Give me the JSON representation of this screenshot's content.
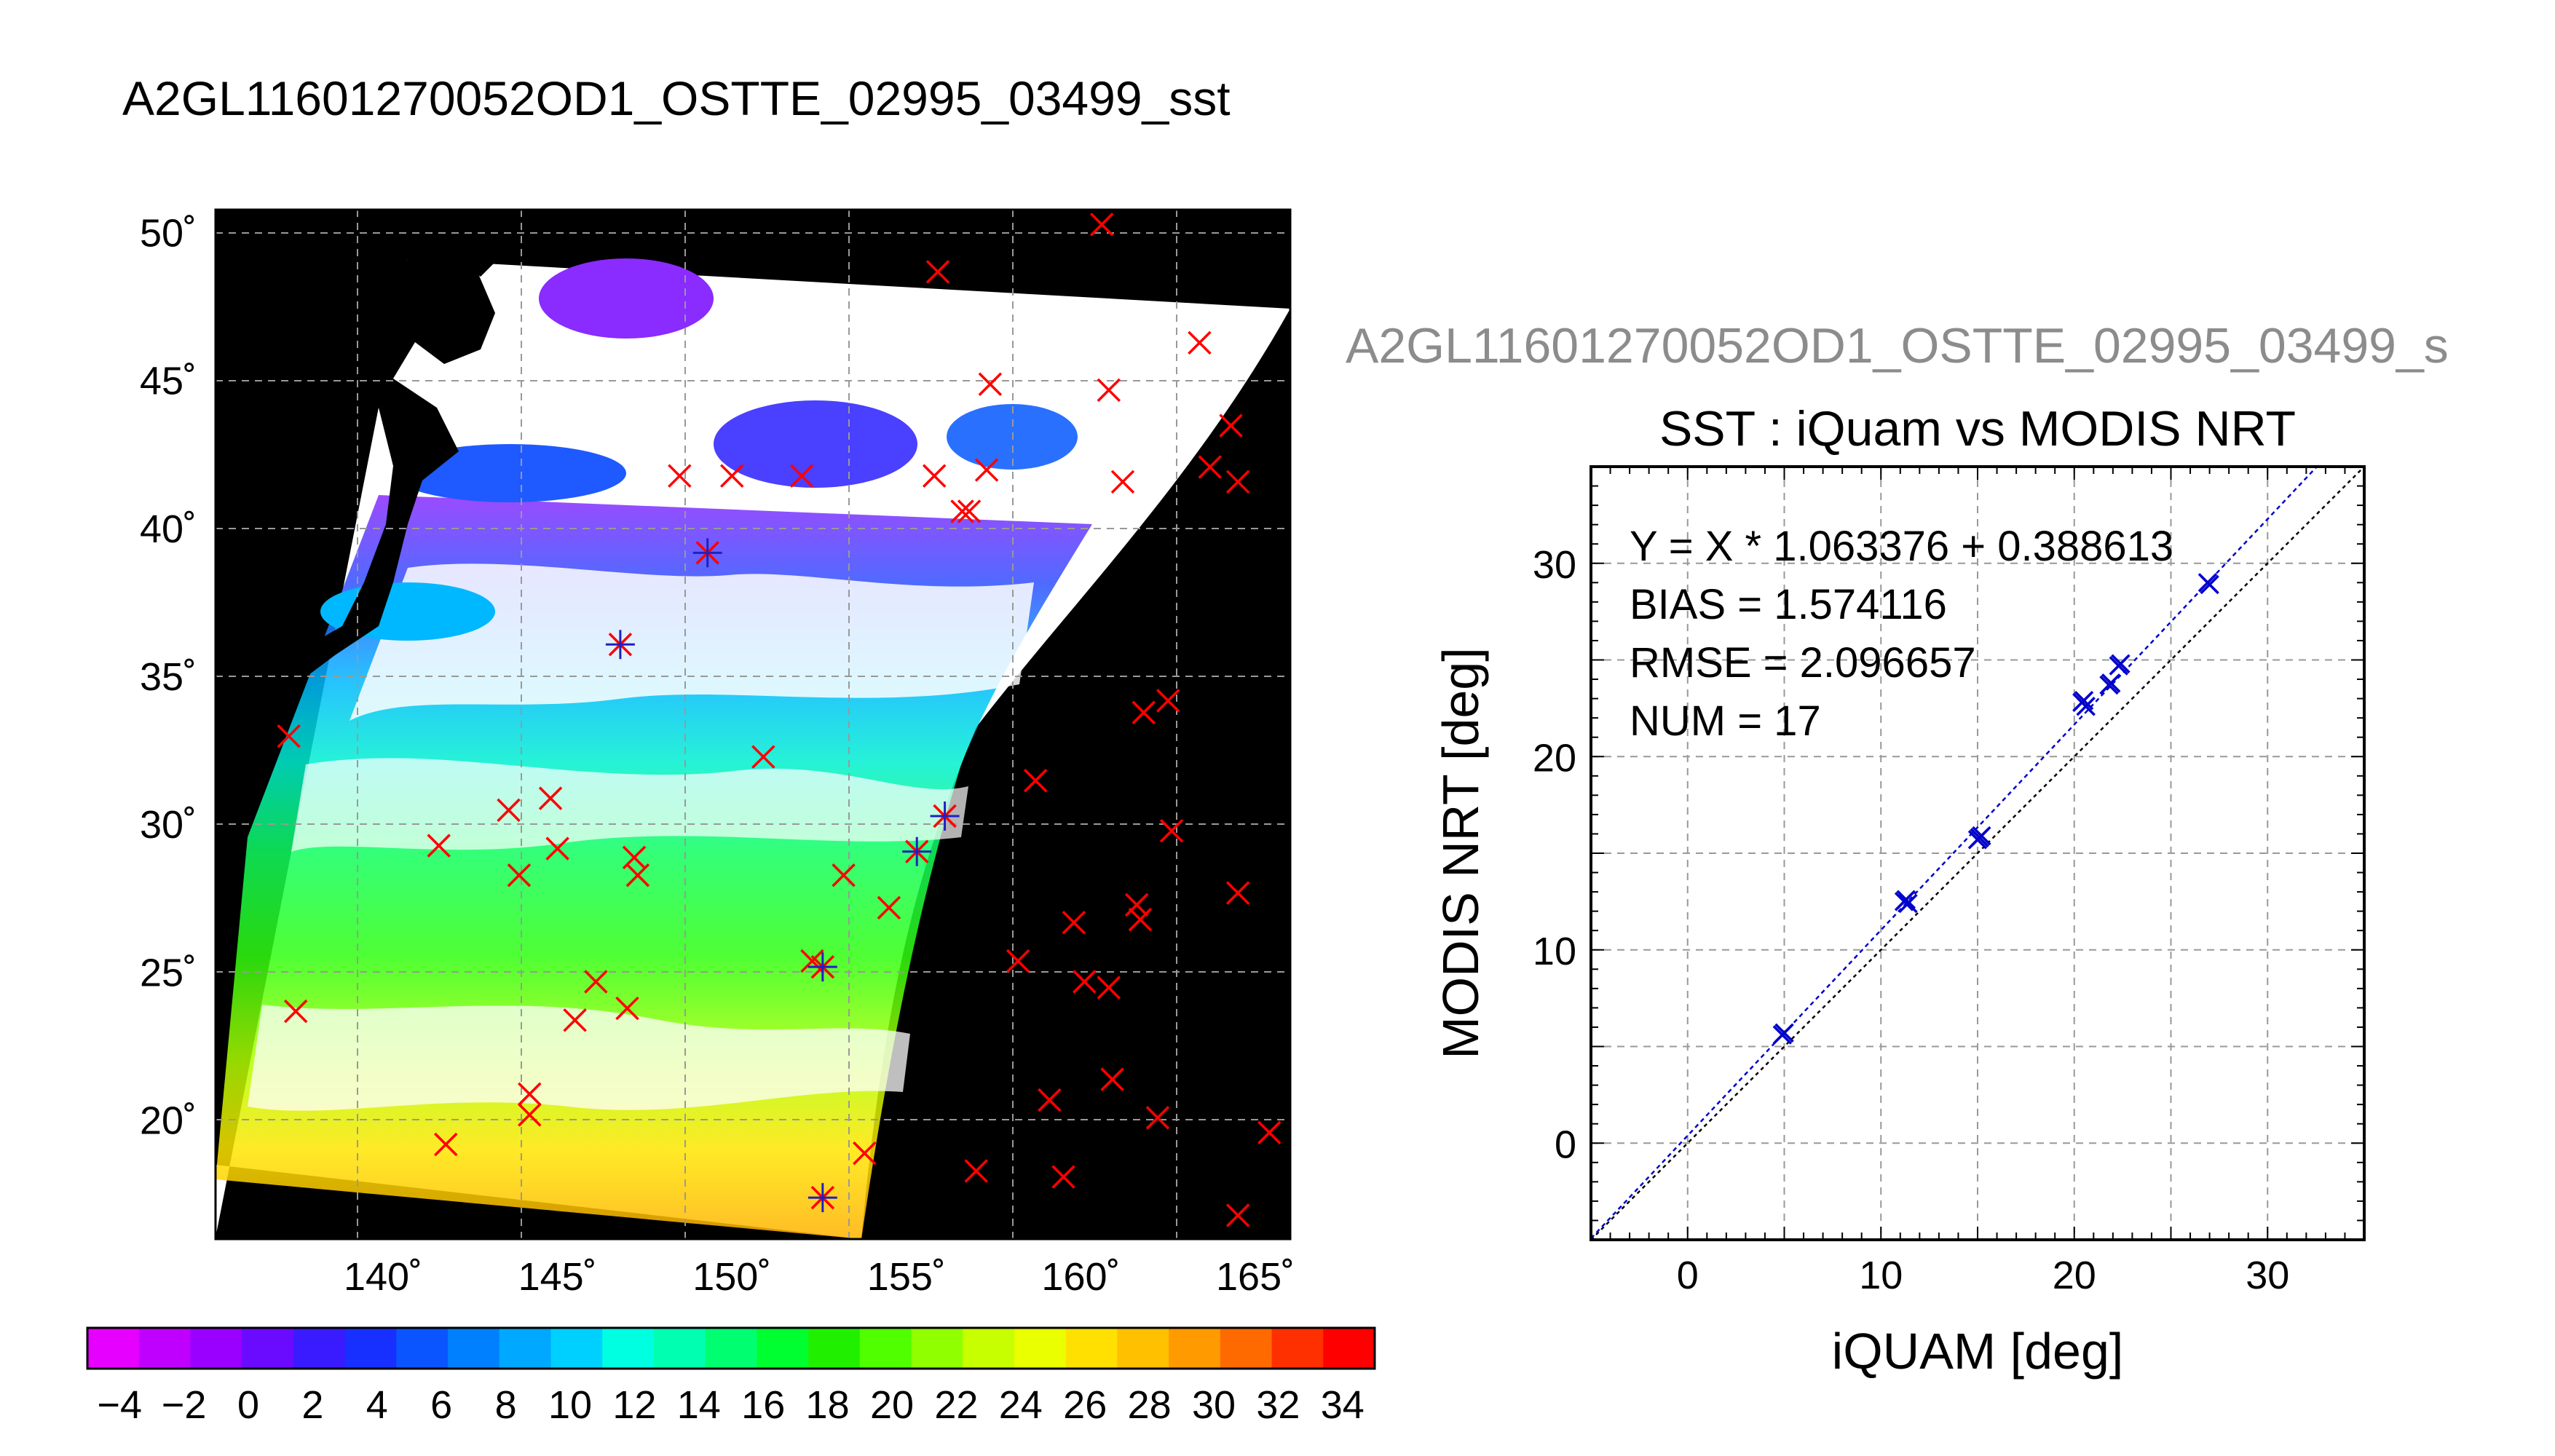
{
  "chart_data": [
    {
      "type": "map",
      "title": "A2GL11601270052OD1_OSTTE_02995_03499_sst",
      "x_ticks": [
        "140˚",
        "145˚",
        "150˚",
        "155˚",
        "160˚",
        "165˚"
      ],
      "y_ticks": [
        "20˚",
        "25˚",
        "30˚",
        "35˚",
        "40˚",
        "45˚",
        "50˚"
      ],
      "lon_range": [
        135.2,
        166.0
      ],
      "lat_range": [
        16.0,
        50.8
      ],
      "grid": true,
      "buoy_markers_red_x": [
        [
          137.3,
          33.0
        ],
        [
          137.5,
          23.7
        ],
        [
          141.6,
          29.3
        ],
        [
          141.8,
          19.2
        ],
        [
          143.6,
          30.5
        ],
        [
          143.9,
          28.3
        ],
        [
          144.2,
          20.9
        ],
        [
          144.2,
          20.2
        ],
        [
          144.8,
          30.9
        ],
        [
          145.0,
          29.2
        ],
        [
          145.5,
          23.4
        ],
        [
          146.1,
          24.7
        ],
        [
          147.0,
          23.8
        ],
        [
          147.2,
          28.9
        ],
        [
          147.3,
          28.3
        ],
        [
          148.5,
          41.8
        ],
        [
          150.0,
          41.8
        ],
        [
          150.9,
          32.3
        ],
        [
          152.0,
          41.8
        ],
        [
          152.3,
          25.4
        ],
        [
          153.2,
          28.3
        ],
        [
          153.8,
          18.9
        ],
        [
          154.5,
          27.2
        ],
        [
          155.8,
          41.8
        ],
        [
          155.9,
          48.7
        ],
        [
          156.6,
          40.6
        ],
        [
          156.8,
          40.6
        ],
        [
          157.0,
          18.3
        ],
        [
          157.3,
          42.0
        ],
        [
          157.4,
          44.9
        ],
        [
          158.2,
          25.4
        ],
        [
          158.7,
          31.5
        ],
        [
          159.1,
          20.7
        ],
        [
          159.5,
          18.1
        ],
        [
          159.8,
          26.7
        ],
        [
          160.1,
          24.7
        ],
        [
          160.6,
          50.3
        ],
        [
          160.8,
          44.7
        ],
        [
          160.8,
          24.5
        ],
        [
          160.9,
          21.4
        ],
        [
          161.2,
          41.6
        ],
        [
          161.6,
          27.3
        ],
        [
          161.7,
          26.8
        ],
        [
          161.8,
          33.8
        ],
        [
          162.2,
          20.1
        ],
        [
          162.5,
          34.2
        ],
        [
          162.6,
          29.8
        ],
        [
          163.4,
          46.3
        ],
        [
          163.7,
          42.1
        ],
        [
          164.3,
          43.5
        ],
        [
          164.5,
          41.6
        ],
        [
          164.5,
          27.7
        ],
        [
          164.5,
          16.8
        ],
        [
          165.4,
          19.6
        ]
      ],
      "matchup_markers_blue_x": [
        [
          149.3,
          39.2
        ],
        [
          146.8,
          36.1
        ],
        [
          156.1,
          30.3
        ],
        [
          155.3,
          29.1
        ],
        [
          152.6,
          25.2
        ],
        [
          152.6,
          17.4
        ]
      ]
    },
    {
      "type": "colorbar",
      "ticks": [
        "−4",
        "−2",
        "0",
        "2",
        "4",
        "6",
        "8",
        "10",
        "12",
        "14",
        "16",
        "18",
        "20",
        "22",
        "24",
        "26",
        "28",
        "30",
        "32",
        "34"
      ],
      "range": [
        -5,
        35
      ],
      "colors": [
        "#e600ff",
        "#c000ff",
        "#9a00ff",
        "#6a0aff",
        "#3a1aff",
        "#1830ff",
        "#0a55ff",
        "#0080ff",
        "#00a8ff",
        "#00d0ff",
        "#00ffe0",
        "#00ffb0",
        "#00ff70",
        "#00ff30",
        "#20f000",
        "#50ff00",
        "#90ff00",
        "#c8ff00",
        "#eaff00",
        "#ffe000",
        "#ffc000",
        "#ff9a00",
        "#ff6a00",
        "#ff3000",
        "#ff0000"
      ]
    },
    {
      "type": "scatter",
      "header": "A2GL11601270052OD1_OSTTE_02995_03499_s",
      "title": "SST : iQuam vs MODIS NRT",
      "xlabel": "iQUAM [deg]",
      "ylabel": "MODIS NRT [deg]",
      "xlim": [
        -5,
        35
      ],
      "ylim": [
        -5,
        35
      ],
      "x_ticks": [
        0,
        10,
        20,
        30
      ],
      "y_ticks": [
        0,
        10,
        20,
        30
      ],
      "grid": true,
      "stats": [
        "Y = X * 1.063376 + 0.388613",
        "BIAS = 1.574116",
        "RMSE = 2.096657",
        "NUM = 17"
      ],
      "fit": {
        "slope": 1.063376,
        "intercept": 0.388613
      },
      "points": [
        [
          4.9,
          5.6
        ],
        [
          11.3,
          12.6
        ],
        [
          11.4,
          12.4
        ],
        [
          15.1,
          15.8
        ],
        [
          15.2,
          15.9
        ],
        [
          20.5,
          22.9
        ],
        [
          20.6,
          22.6
        ],
        [
          21.8,
          23.7
        ],
        [
          22.3,
          24.7
        ],
        [
          22.4,
          24.8
        ],
        [
          27.0,
          28.9
        ],
        [
          26.9,
          29.0
        ],
        [
          5.0,
          5.7
        ],
        [
          11.2,
          12.5
        ],
        [
          20.4,
          22.8
        ],
        [
          21.9,
          23.8
        ],
        [
          15.0,
          15.7
        ]
      ]
    }
  ]
}
